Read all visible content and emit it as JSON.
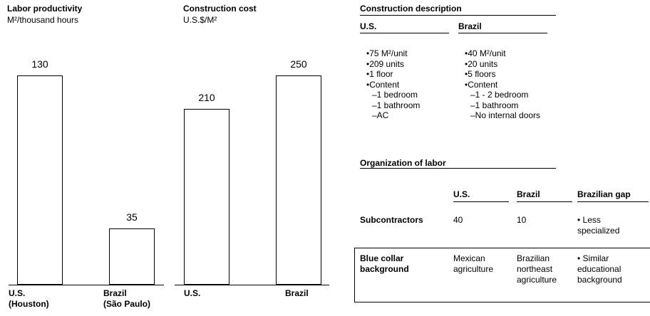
{
  "chart_data": [
    {
      "type": "bar",
      "title": "Labor productivity",
      "subtitle": "M²/thousand hours",
      "categories": [
        "U.S.\n(Houston)",
        "Brazil\n(São Paulo)"
      ],
      "values": [
        130,
        35
      ],
      "color": "#ffffff"
    },
    {
      "type": "bar",
      "title": "Construction cost",
      "subtitle": "U.S.$/M²",
      "categories": [
        "U.S.",
        "Brazil"
      ],
      "values": [
        210,
        250
      ],
      "color": "#ffffff"
    }
  ],
  "description": {
    "title": "Construction description",
    "columns": [
      {
        "name": "U.S.",
        "items": [
          "•75 M²/unit",
          "•209 units",
          "•1 floor",
          "•Content",
          "–1 bedroom",
          "–1 bathroom",
          "–AC"
        ]
      },
      {
        "name": "Brazil",
        "items": [
          "•40 M²/unit",
          "•20 units",
          "•5 floors",
          "•Content",
          "–1 - 2 bedroom",
          "–1 bathroom",
          "–No internal doors"
        ]
      }
    ]
  },
  "labor": {
    "title": "Organization of labor",
    "headers": [
      "U.S.",
      "Brazil",
      "Brazilian gap"
    ],
    "rows": [
      [
        "Subcontractors",
        "40",
        "10",
        "• Less specialized"
      ],
      [
        "Blue collar background",
        "Mexican agriculture",
        "Brazilian northeast agriculture",
        "• Similar educational background"
      ]
    ]
  }
}
